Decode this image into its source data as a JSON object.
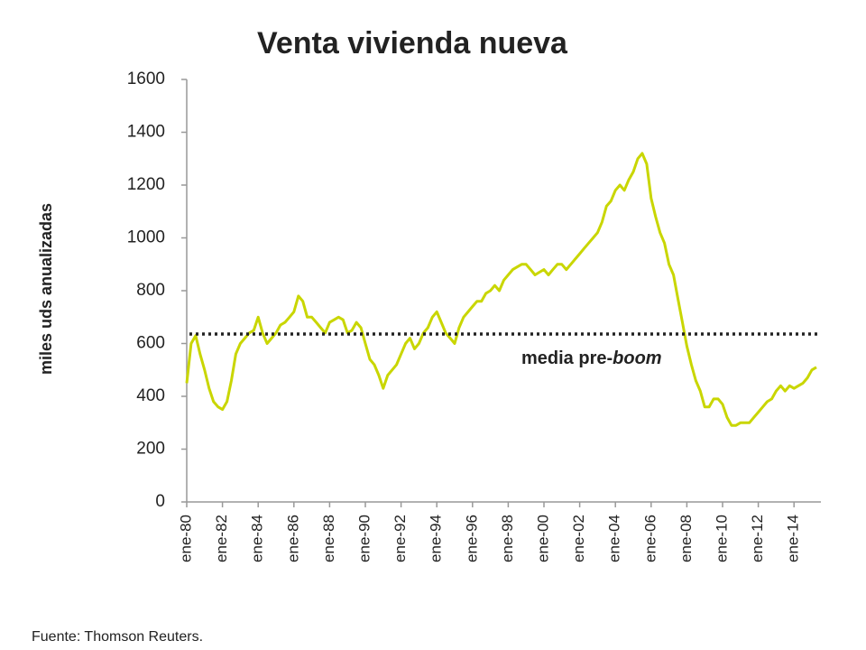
{
  "chart_data": {
    "type": "line",
    "title": "Venta vivienda nueva",
    "y_label": "miles uds anualizadas",
    "source": "Fuente: Thomson Reuters.",
    "reference_line": {
      "value": 636,
      "label": [
        "media pre-",
        "boom"
      ]
    },
    "color": "#c9d600",
    "categories": [
      "ene-80",
      null,
      null,
      null,
      null,
      null,
      null,
      null,
      "ene-82",
      null,
      null,
      null,
      null,
      null,
      null,
      null,
      "ene-84",
      null,
      null,
      null,
      null,
      null,
      null,
      null,
      "ene-86",
      null,
      null,
      null,
      null,
      null,
      null,
      null,
      "ene-88",
      null,
      null,
      null,
      null,
      null,
      null,
      null,
      "ene-90",
      null,
      null,
      null,
      null,
      null,
      null,
      null,
      "ene-92",
      null,
      null,
      null,
      null,
      null,
      null,
      null,
      "ene-94",
      null,
      null,
      null,
      null,
      null,
      null,
      null,
      "ene-96",
      null,
      null,
      null,
      null,
      null,
      null,
      null,
      "ene-98",
      null,
      null,
      null,
      null,
      null,
      null,
      null,
      "ene-00",
      null,
      null,
      null,
      null,
      null,
      null,
      null,
      "ene-02",
      null,
      null,
      null,
      null,
      null,
      null,
      null,
      "ene-04",
      null,
      null,
      null,
      null,
      null,
      null,
      null,
      "ene-06",
      null,
      null,
      null,
      null,
      null,
      null,
      null,
      "ene-08",
      null,
      null,
      null,
      null,
      null,
      null,
      null,
      "ene-10",
      null,
      null,
      null,
      null,
      null,
      null,
      null,
      "ene-12",
      null,
      null,
      null,
      null,
      null,
      null,
      null,
      "ene-14",
      null,
      null,
      null,
      null,
      null
    ],
    "values": [
      450,
      600,
      630,
      560,
      500,
      430,
      380,
      360,
      350,
      380,
      460,
      560,
      600,
      620,
      640,
      650,
      700,
      640,
      600,
      620,
      640,
      670,
      680,
      700,
      720,
      780,
      760,
      700,
      700,
      680,
      660,
      640,
      680,
      690,
      700,
      690,
      640,
      650,
      680,
      660,
      600,
      540,
      520,
      480,
      430,
      480,
      500,
      520,
      560,
      600,
      620,
      580,
      600,
      640,
      660,
      700,
      720,
      680,
      640,
      620,
      600,
      660,
      700,
      720,
      740,
      760,
      760,
      790,
      800,
      820,
      800,
      840,
      860,
      880,
      890,
      900,
      900,
      880,
      860,
      870,
      880,
      860,
      880,
      900,
      900,
      880,
      900,
      920,
      940,
      960,
      980,
      1000,
      1020,
      1060,
      1120,
      1140,
      1180,
      1200,
      1180,
      1220,
      1250,
      1300,
      1320,
      1280,
      1150,
      1080,
      1020,
      980,
      900,
      860,
      770,
      680,
      590,
      520,
      460,
      420,
      360,
      360,
      390,
      390,
      370,
      320,
      290,
      290,
      300,
      300,
      300,
      320,
      340,
      360,
      380,
      390,
      420,
      440,
      420,
      440,
      430,
      440,
      450,
      470,
      500,
      510
    ],
    "ylim": [
      0,
      1600
    ],
    "yticks": [
      0,
      200,
      400,
      600,
      800,
      1000,
      1200,
      1400,
      1600
    ],
    "grid": false
  }
}
